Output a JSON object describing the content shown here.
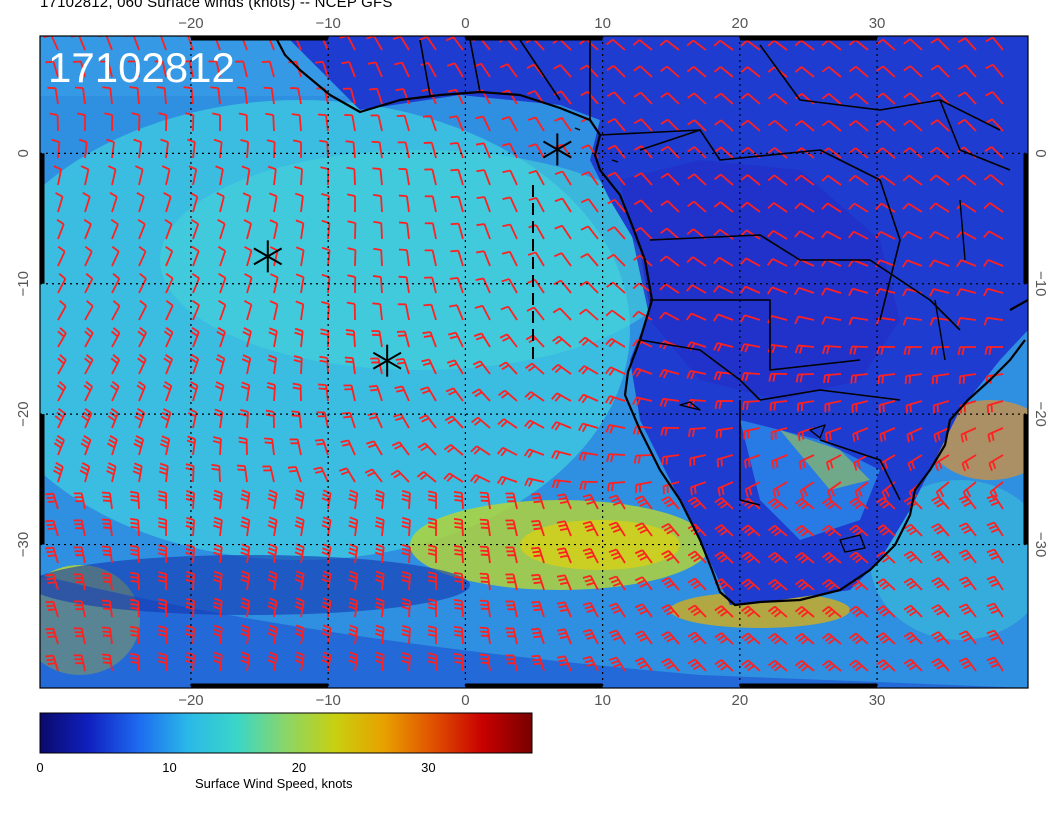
{
  "title": "17102812, 060 Surface winds (knots) -- NCEP GFS",
  "stamp": "17102812",
  "map": {
    "lon_range": [
      -31,
      41
    ],
    "lat_range": [
      9,
      -41
    ],
    "lon_ticks": [
      "−20",
      "−10",
      "0",
      "10",
      "20",
      "30"
    ],
    "lat_ticks": [
      "0",
      "−10",
      "−20",
      "−30"
    ],
    "lon_values": [
      -20,
      -10,
      0,
      10,
      20,
      30
    ],
    "lat_values": [
      0,
      -10,
      -20,
      -30
    ],
    "barb_color": "#ff2020",
    "coast_color": "#000000",
    "markers": [
      {
        "lon": 6.7,
        "lat": 0.3
      },
      {
        "lon": -14.4,
        "lat": -7.9
      },
      {
        "lon": -5.7,
        "lat": -15.9
      }
    ]
  },
  "colorbar": {
    "label": "Surface Wind Speed, knots",
    "ticks": [
      "0",
      "10",
      "20",
      "30"
    ],
    "tick_values": [
      0,
      10,
      20,
      30
    ],
    "min": 0,
    "max": 38,
    "colors": [
      "#0a0a6a",
      "#1020c0",
      "#1e6af0",
      "#2ab8e8",
      "#3ad6c8",
      "#8ad668",
      "#c8d010",
      "#e8a000",
      "#e05000",
      "#c80000",
      "#780000"
    ]
  }
}
